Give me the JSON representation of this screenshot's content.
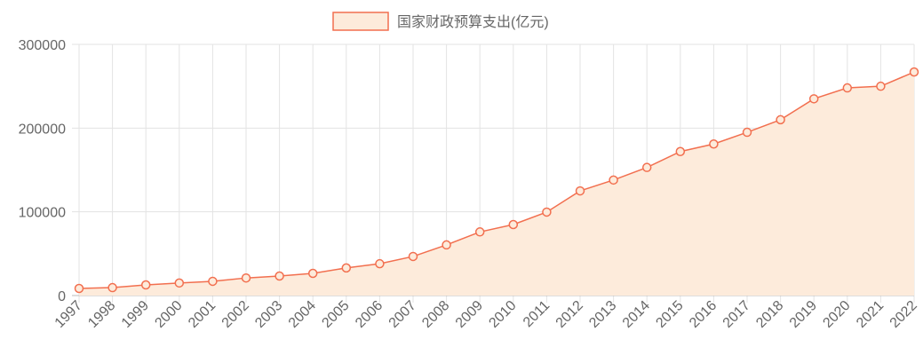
{
  "chart_data": {
    "type": "line",
    "legend_label": "国家财政预算支出(亿元)",
    "categories": [
      "1997",
      "1998",
      "1999",
      "2000",
      "2001",
      "2002",
      "2003",
      "2004",
      "2005",
      "2006",
      "2007",
      "2008",
      "2009",
      "2010",
      "2011",
      "2012",
      "2013",
      "2014",
      "2015",
      "2016",
      "2017",
      "2018",
      "2019",
      "2020",
      "2021",
      "2022"
    ],
    "values": [
      8500,
      9500,
      12700,
      15000,
      17000,
      21000,
      23300,
      26500,
      33000,
      38000,
      46700,
      60500,
      76000,
      84800,
      99700,
      125000,
      138000,
      153000,
      172000,
      181000,
      195000,
      210000,
      235000,
      248000,
      250000,
      267000
    ],
    "color": "#f26f4f",
    "fill_color": "#fdebdb",
    "ylim": [
      0,
      300000
    ],
    "yticks": [
      0,
      100000,
      200000,
      300000
    ],
    "grid": true,
    "legend": "top"
  }
}
